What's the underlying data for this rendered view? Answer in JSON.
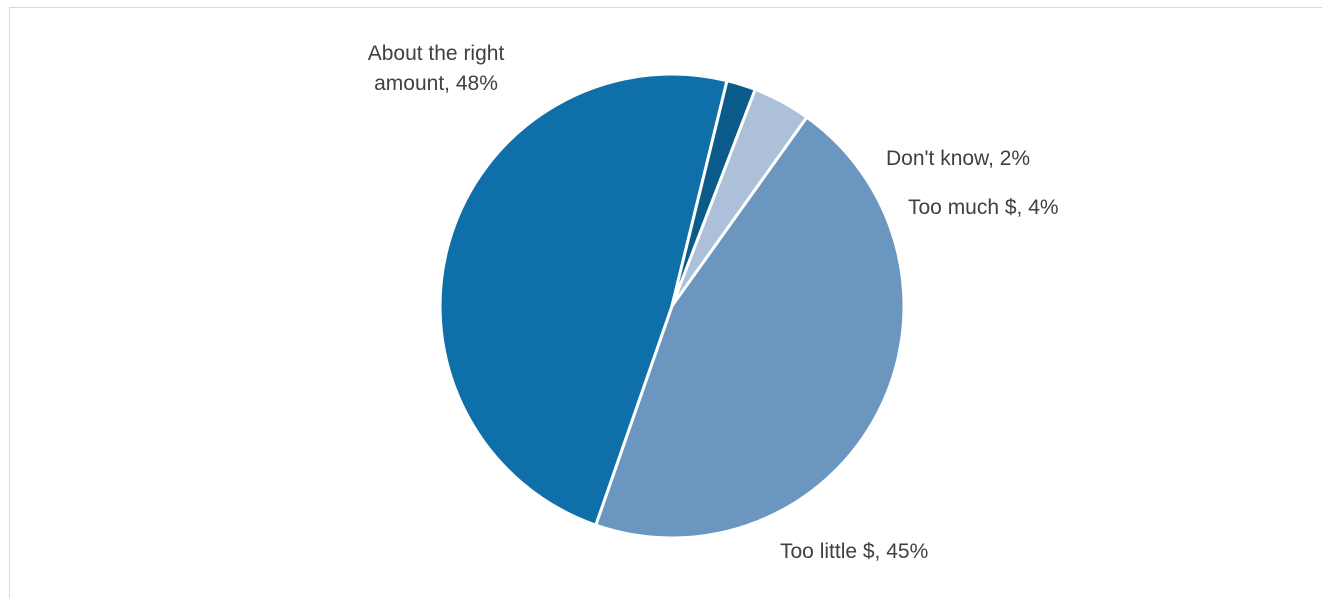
{
  "chart_data": {
    "type": "pie",
    "title": "",
    "slices": [
      {
        "label": "Too much $",
        "value": 4,
        "display": "Too much $, 4%",
        "color": "#adc0d9"
      },
      {
        "label": "Too little $",
        "value": 45,
        "display": "Too little $, 45%",
        "color": "#6a96c0"
      },
      {
        "label": "About the right amount",
        "value": 48,
        "display_lines": [
          "About the right",
          "amount, 48%"
        ],
        "color": "#0f6fa8"
      },
      {
        "label": "Don't know",
        "value": 2,
        "display": "Don't know, 2%",
        "color": "#0b5b8a"
      }
    ],
    "start_angle_deg": -69,
    "direction": "clockwise",
    "legend": "none",
    "separator_color": "#ffffff"
  }
}
